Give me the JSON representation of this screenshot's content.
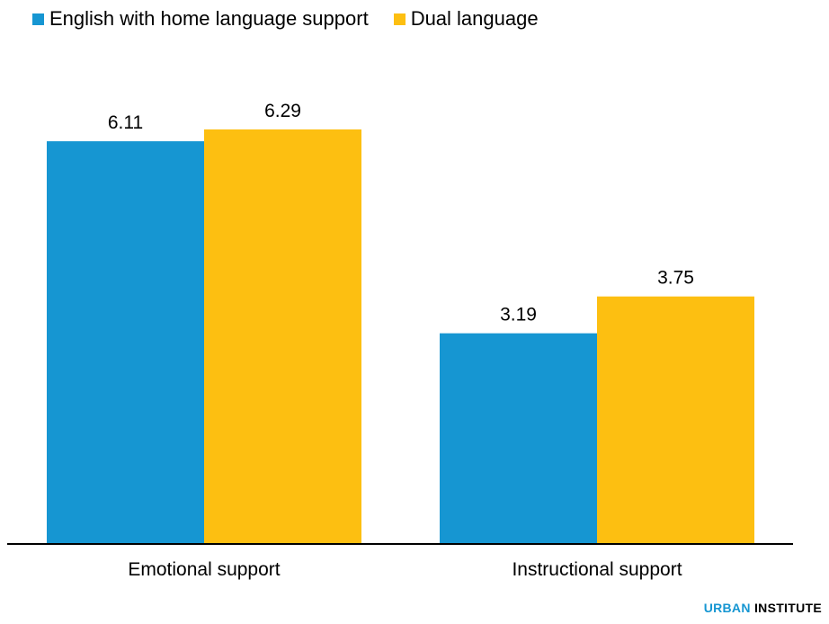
{
  "chart_data": {
    "type": "bar",
    "categories": [
      "Emotional support",
      "Instructional support"
    ],
    "series": [
      {
        "name": "English with home language support",
        "values": [
          6.11,
          3.19
        ],
        "color": "#1696d2"
      },
      {
        "name": "Dual language",
        "values": [
          6.29,
          3.75
        ],
        "color": "#fdbf11"
      }
    ],
    "ylim": [
      0,
      7
    ],
    "grid": false,
    "legend_placement": "top-left"
  },
  "credit": {
    "urban": "URBAN",
    "institute": "INSTITUTE"
  }
}
